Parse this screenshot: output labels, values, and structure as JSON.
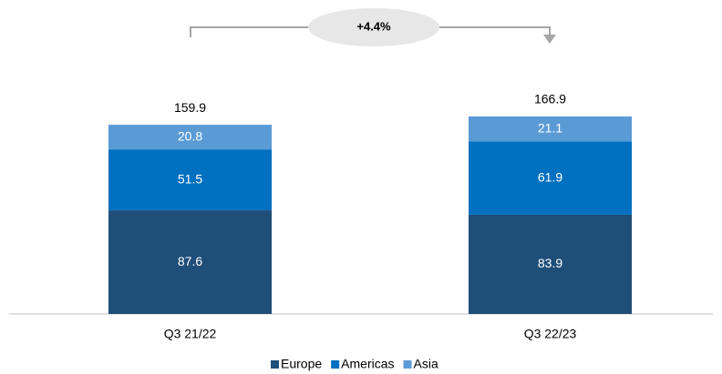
{
  "chart_data": {
    "type": "stacked_bar",
    "categories": [
      "Q3 21/22",
      "Q3 22/23"
    ],
    "series": [
      {
        "name": "Europe",
        "color": "#1f4e79",
        "values": [
          87.6,
          83.9
        ]
      },
      {
        "name": "Americas",
        "color": "#0070c0",
        "values": [
          51.5,
          61.9
        ]
      },
      {
        "name": "Asia",
        "color": "#5b9bd5",
        "values": [
          20.8,
          21.1
        ]
      }
    ],
    "totals": [
      159.9,
      166.9
    ],
    "annotation": "+4.4%",
    "legend": "bottom"
  }
}
